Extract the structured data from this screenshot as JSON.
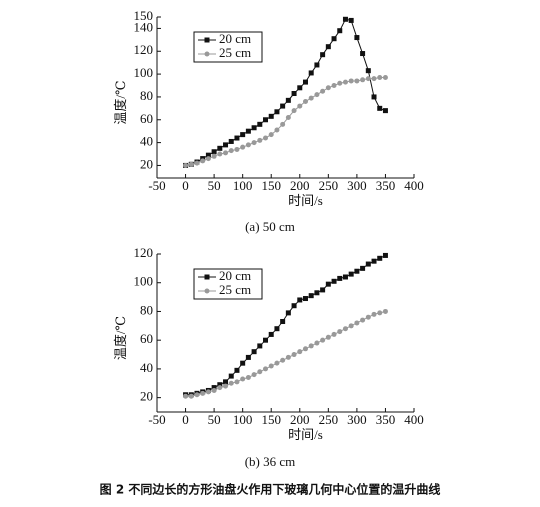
{
  "chart_data": [
    {
      "type": "line",
      "subtitle": "(a) 50 cm",
      "x_label": "时间/s",
      "y_label": "温度/℃",
      "x": [
        0,
        10,
        20,
        30,
        40,
        50,
        60,
        70,
        80,
        90,
        100,
        110,
        120,
        130,
        140,
        150,
        160,
        170,
        180,
        190,
        200,
        210,
        220,
        230,
        240,
        250,
        260,
        270,
        280,
        290,
        300,
        310,
        320,
        330,
        340,
        350
      ],
      "series": [
        {
          "name": "20 cm",
          "color": "#111111",
          "marker": "square",
          "values": [
            20,
            21,
            23,
            26,
            29,
            32,
            35,
            38,
            41,
            44,
            47,
            50,
            53,
            56,
            60,
            63,
            67,
            72,
            77,
            83,
            88,
            93,
            101,
            108,
            117,
            124,
            131,
            138,
            148,
            147,
            132,
            118,
            103,
            80,
            70,
            68
          ]
        },
        {
          "name": "25 cm",
          "color": "#999999",
          "marker": "circle",
          "values": [
            20,
            21,
            22,
            24,
            26,
            28,
            30,
            31,
            33,
            34,
            36,
            38,
            40,
            42,
            44,
            47,
            51,
            56,
            62,
            68,
            72,
            76,
            79,
            82,
            85,
            88,
            90,
            92,
            93,
            94,
            94,
            95,
            96,
            96,
            97,
            97
          ]
        }
      ],
      "xlim": [
        -50,
        400
      ],
      "xticks": [
        -50,
        0,
        50,
        100,
        150,
        200,
        250,
        300,
        350,
        400
      ],
      "ylim": [
        9,
        150
      ],
      "yticks": [
        20,
        40,
        60,
        80,
        100,
        120,
        140,
        150
      ],
      "legend": "upper left"
    },
    {
      "type": "line",
      "subtitle": "(b) 36 cm",
      "x_label": "时间/s",
      "y_label": "温度/℃",
      "x": [
        0,
        10,
        20,
        30,
        40,
        50,
        60,
        70,
        80,
        90,
        100,
        110,
        120,
        130,
        140,
        150,
        160,
        170,
        180,
        190,
        200,
        210,
        220,
        230,
        240,
        250,
        260,
        270,
        280,
        290,
        300,
        310,
        320,
        330,
        340,
        350
      ],
      "series": [
        {
          "name": "20 cm",
          "color": "#111111",
          "marker": "square",
          "values": [
            22,
            22,
            23,
            24,
            25,
            27,
            29,
            31,
            35,
            39,
            44,
            48,
            52,
            56,
            60,
            64,
            68,
            73,
            79,
            84,
            88,
            89,
            91,
            93,
            95,
            99,
            101,
            103,
            104,
            106,
            108,
            110,
            113,
            115,
            117,
            119
          ]
        },
        {
          "name": "25 cm",
          "color": "#999999",
          "marker": "circle",
          "values": [
            21,
            21,
            22,
            23,
            24,
            25,
            27,
            28,
            30,
            31,
            33,
            34,
            36,
            38,
            40,
            42,
            44,
            46,
            48,
            50,
            52,
            54,
            56,
            58,
            60,
            62,
            64,
            66,
            68,
            70,
            72,
            74,
            76,
            78,
            79,
            80
          ]
        }
      ],
      "xlim": [
        -50,
        400
      ],
      "xticks": [
        -50,
        0,
        50,
        100,
        150,
        200,
        250,
        300,
        350,
        400
      ],
      "ylim": [
        10,
        120
      ],
      "yticks": [
        20,
        40,
        60,
        80,
        100,
        120
      ],
      "legend": "upper left"
    }
  ],
  "caption": "图 2   不同边长的方形油盘火作用下玻璃几何中心位置的温升曲线"
}
